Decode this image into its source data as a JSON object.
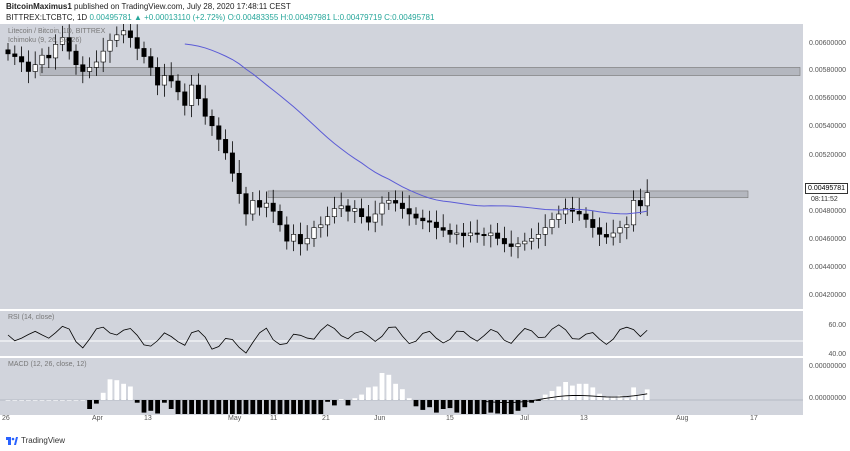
{
  "header": {
    "author": "BitcoinMaximus1",
    "published": "published on TradingView.com, July 28, 2020 17:48:11 CEST",
    "symbol_line": "BITTREX:LTCBTC, 1D",
    "price_current": "0.00495781",
    "change": "▲ +0.00013110 (+2.72%)",
    "ohlc": "O:0.00483355 H:0.00497981 L:0.00479719 C:0.00495781"
  },
  "main_pane": {
    "title": "Litecoin / Bitcoin, 1D, BITTREX",
    "indicator": "Ichimoku (9, 26, 52, 26)",
    "price_labels": [
      "0.00600000",
      "0.00580000",
      "0.00560000",
      "0.00540000",
      "0.00520000",
      "0.00500000",
      "0.00480000",
      "0.00460000",
      "0.00440000",
      "0.00420000"
    ],
    "last_price": "0.00495781",
    "countdown": "08:11:52",
    "ma_color": "#5b5bd6"
  },
  "rsi_pane": {
    "title": "RSI (14, close)",
    "labels": [
      "60.00",
      "40.00"
    ]
  },
  "macd_pane": {
    "title": "MACD (12, 26, close, 12)",
    "labels": [
      "0.00000000"
    ]
  },
  "x_axis": [
    "26",
    "Apr",
    "13",
    "May",
    "11",
    "21",
    "Jun",
    "15",
    "Jul",
    "13",
    "Aug",
    "17"
  ],
  "footer": {
    "brand": "TradingView"
  },
  "chart_data": {
    "type": "candlestick",
    "symbol": "LTCBTC",
    "timeframe": "1D",
    "ylim": [
      0.0041,
      0.0062
    ],
    "closes_approx": [
      0.00598,
      0.00596,
      0.00592,
      0.00585,
      0.0059,
      0.00597,
      0.00595,
      0.00605,
      0.0061,
      0.006,
      0.0059,
      0.00585,
      0.00588,
      0.00592,
      0.006,
      0.00608,
      0.00612,
      0.00615,
      0.0061,
      0.00602,
      0.00596,
      0.00588,
      0.00575,
      0.00582,
      0.00578,
      0.0057,
      0.0056,
      0.00575,
      0.00565,
      0.00552,
      0.00545,
      0.00535,
      0.00525,
      0.0051,
      0.00495,
      0.0048,
      0.0049,
      0.00485,
      0.00488,
      0.00482,
      0.00472,
      0.0046,
      0.00465,
      0.00458,
      0.00462,
      0.0047,
      0.00472,
      0.00478,
      0.00484,
      0.00486,
      0.00482,
      0.00484,
      0.00478,
      0.00474,
      0.0048,
      0.00488,
      0.0049,
      0.00488,
      0.00484,
      0.0048,
      0.00477,
      0.00475,
      0.00474,
      0.0047,
      0.00468,
      0.00465,
      0.00466,
      0.00464,
      0.00466,
      0.00465,
      0.00464,
      0.00466,
      0.00462,
      0.00458,
      0.00456,
      0.00458,
      0.0046,
      0.00462,
      0.00465,
      0.0047,
      0.00476,
      0.0048,
      0.00484,
      0.00482,
      0.0048,
      0.00476,
      0.0047,
      0.00465,
      0.00463,
      0.00466,
      0.0047,
      0.00472,
      0.0049,
      0.00486,
      0.00495781
    ],
    "resistance_zones": [
      [
        0.00582,
        0.00588
      ],
      [
        0.00492,
        0.00497
      ]
    ]
  }
}
